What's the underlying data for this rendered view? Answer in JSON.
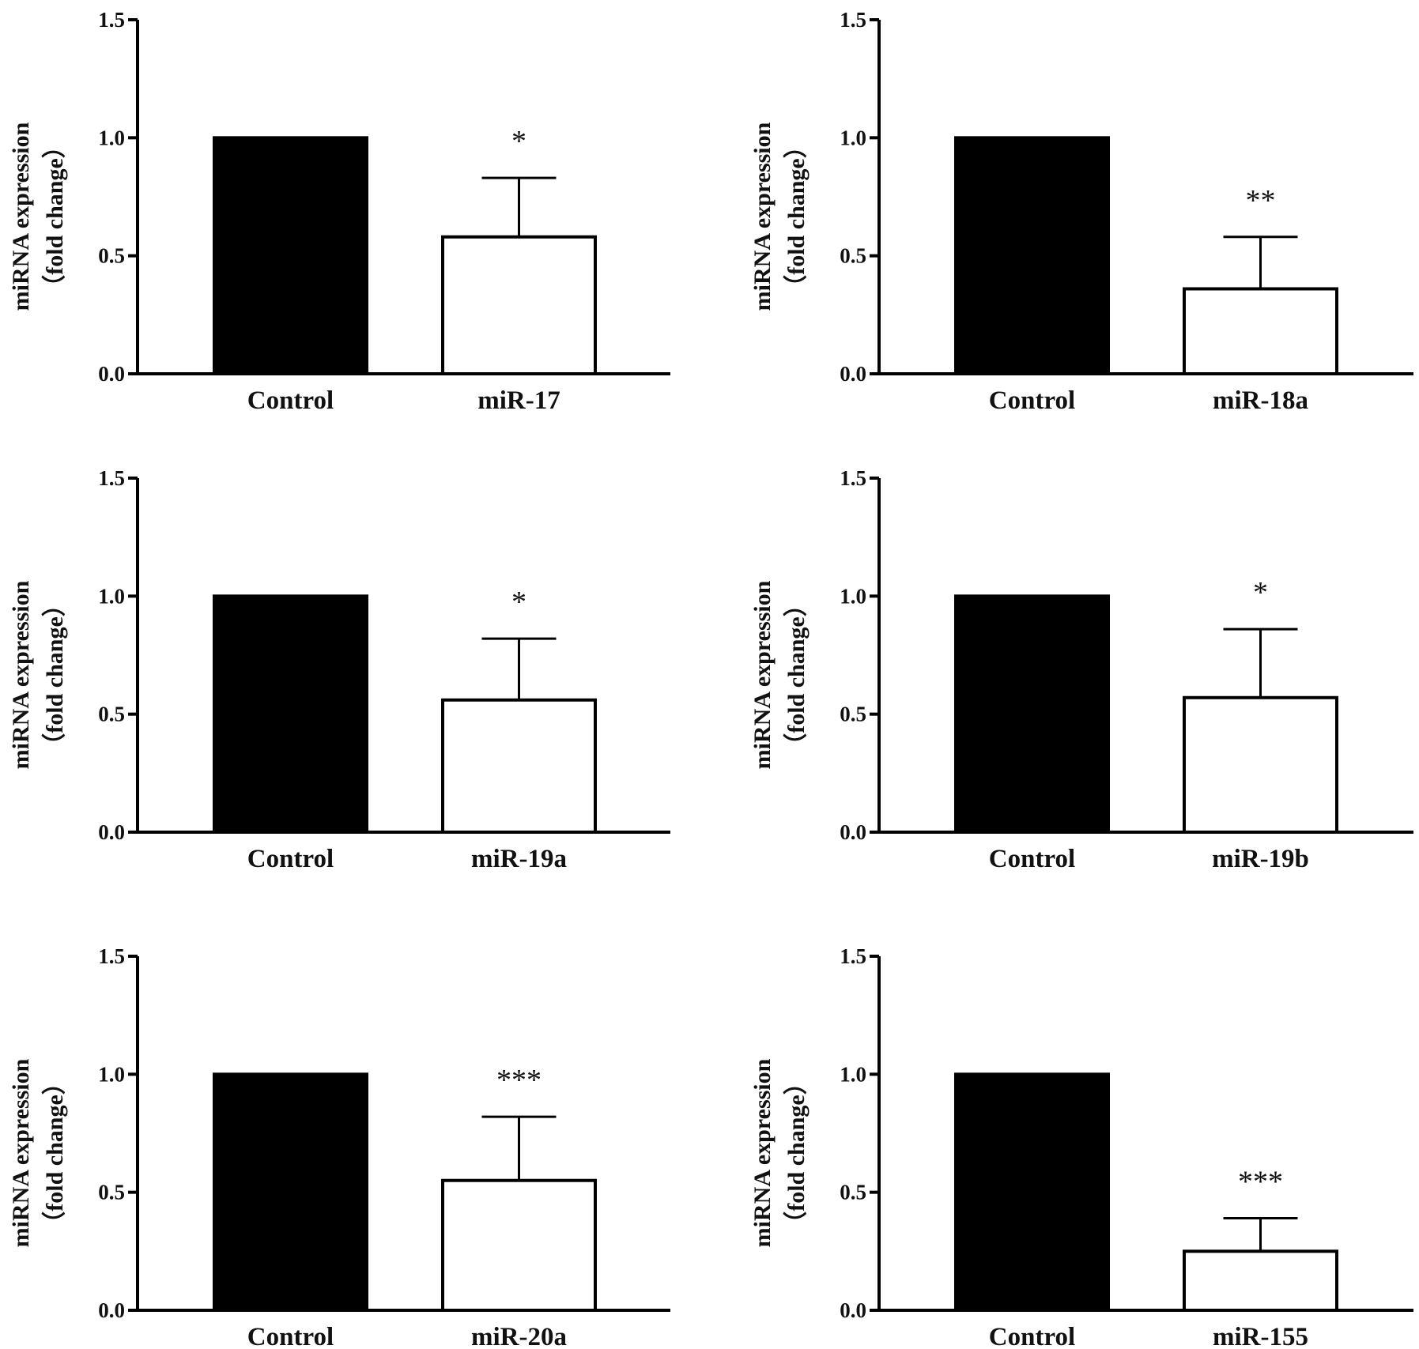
{
  "chart_data": [
    {
      "type": "bar",
      "categories": [
        "Control",
        "miR-17"
      ],
      "values": [
        1.0,
        0.58
      ],
      "error_bars": [
        0,
        0.25
      ],
      "significance": "*",
      "ylabel_lines": [
        "miRNA expression",
        "（fold change）"
      ],
      "ylim": [
        0,
        1.5
      ],
      "yticks": [
        "0.0",
        "0.5",
        "1.0",
        "1.5"
      ],
      "bar_colors": [
        "#000000",
        "#ffffff"
      ]
    },
    {
      "type": "bar",
      "categories": [
        "Control",
        "miR-18a"
      ],
      "values": [
        1.0,
        0.36
      ],
      "error_bars": [
        0,
        0.22
      ],
      "significance": "**",
      "ylabel_lines": [
        "miRNA expression",
        "（fold change）"
      ],
      "ylim": [
        0,
        1.5
      ],
      "yticks": [
        "0.0",
        "0.5",
        "1.0",
        "1.5"
      ],
      "bar_colors": [
        "#000000",
        "#ffffff"
      ]
    },
    {
      "type": "bar",
      "categories": [
        "Control",
        "miR-19a"
      ],
      "values": [
        1.0,
        0.56
      ],
      "error_bars": [
        0,
        0.26
      ],
      "significance": "*",
      "ylabel_lines": [
        "miRNA expression",
        "（fold change）"
      ],
      "ylim": [
        0,
        1.5
      ],
      "yticks": [
        "0.0",
        "0.5",
        "1.0",
        "1.5"
      ],
      "bar_colors": [
        "#000000",
        "#ffffff"
      ]
    },
    {
      "type": "bar",
      "categories": [
        "Control",
        "miR-19b"
      ],
      "values": [
        1.0,
        0.57
      ],
      "error_bars": [
        0,
        0.29
      ],
      "significance": "*",
      "ylabel_lines": [
        "miRNA expression",
        "（fold change）"
      ],
      "ylim": [
        0,
        1.5
      ],
      "yticks": [
        "0.0",
        "0.5",
        "1.0",
        "1.5"
      ],
      "bar_colors": [
        "#000000",
        "#ffffff"
      ]
    },
    {
      "type": "bar",
      "categories": [
        "Control",
        "miR-20a"
      ],
      "values": [
        1.0,
        0.55
      ],
      "error_bars": [
        0,
        0.27
      ],
      "significance": "***",
      "ylabel_lines": [
        "miRNA expression",
        "（fold change）"
      ],
      "ylim": [
        0,
        1.5
      ],
      "yticks": [
        "0.0",
        "0.5",
        "1.0",
        "1.5"
      ],
      "bar_colors": [
        "#000000",
        "#ffffff"
      ]
    },
    {
      "type": "bar",
      "categories": [
        "Control",
        "miR-155"
      ],
      "values": [
        1.0,
        0.25
      ],
      "error_bars": [
        0,
        0.14
      ],
      "significance": "***",
      "ylabel_lines": [
        "miRNA expression",
        "（fold change）"
      ],
      "ylim": [
        0,
        1.5
      ],
      "yticks": [
        "0.0",
        "0.5",
        "1.0",
        "1.5"
      ],
      "bar_colors": [
        "#000000",
        "#ffffff"
      ]
    }
  ]
}
